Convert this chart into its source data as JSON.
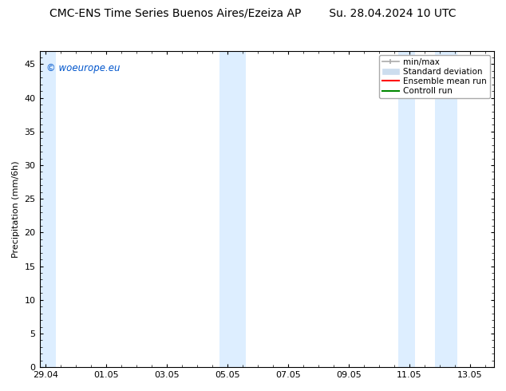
{
  "title": "CMC-ENS Time Series Buenos Aires/Ezeiza AP        Su. 28.04.2024 10 UTC",
  "ylabel": "Precipitation (mm/6h)",
  "watermark": "© woeurope.eu",
  "watermark_color": "#0055cc",
  "background_color": "#ffffff",
  "plot_bg_color": "#ffffff",
  "shaded_band_color": "#ddeeff",
  "ylim": [
    0,
    47
  ],
  "yticks": [
    0,
    5,
    10,
    15,
    20,
    25,
    30,
    35,
    40,
    45
  ],
  "xtick_labels": [
    "29.04",
    "01.05",
    "03.05",
    "05.05",
    "07.05",
    "09.05",
    "11.05",
    "13.05"
  ],
  "shaded_xranges": [
    [
      -0.15,
      0.35
    ],
    [
      5.75,
      6.6
    ],
    [
      11.65,
      12.2
    ],
    [
      12.85,
      13.6
    ]
  ],
  "legend_entries": [
    {
      "label": "min/max",
      "color": "#aaaaaa",
      "type": "errorbar"
    },
    {
      "label": "Standard deviation",
      "color": "#ccddee",
      "type": "band"
    },
    {
      "label": "Ensemble mean run",
      "color": "#ff0000",
      "type": "line"
    },
    {
      "label": "Controll run",
      "color": "#008800",
      "type": "line"
    }
  ],
  "title_fontsize": 10,
  "axis_label_fontsize": 8,
  "tick_fontsize": 8,
  "legend_fontsize": 7.5
}
